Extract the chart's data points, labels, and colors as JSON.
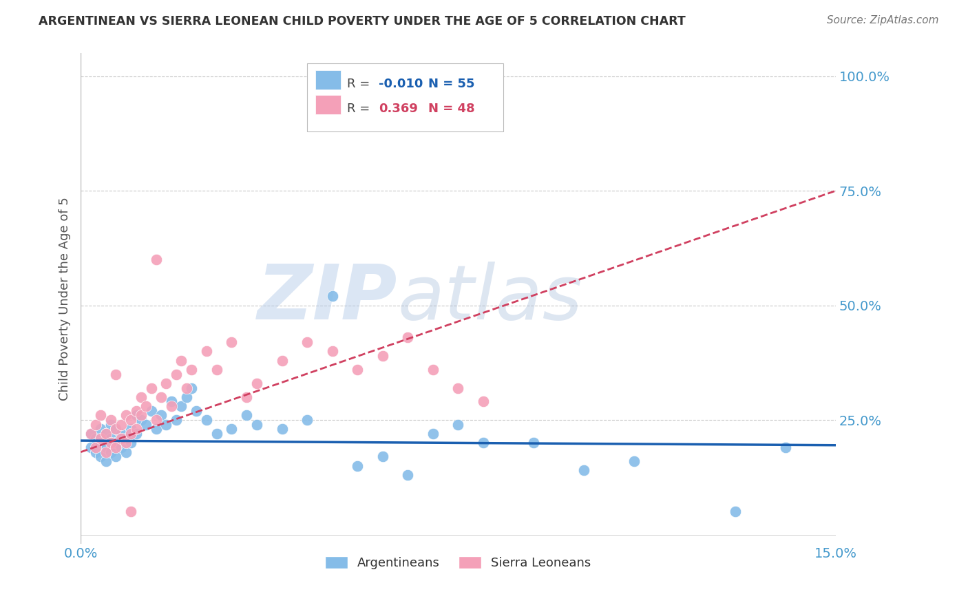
{
  "title": "ARGENTINEAN VS SIERRA LEONEAN CHILD POVERTY UNDER THE AGE OF 5 CORRELATION CHART",
  "source": "Source: ZipAtlas.com",
  "ylabel": "Child Poverty Under the Age of 5",
  "xlim": [
    0.0,
    0.15
  ],
  "ylim": [
    -0.02,
    1.05
  ],
  "xticks": [
    0.0,
    0.05,
    0.1,
    0.15
  ],
  "xtick_labels": [
    "0.0%",
    "",
    "",
    "15.0%"
  ],
  "yticks": [
    0.0,
    0.25,
    0.5,
    0.75,
    1.0
  ],
  "ytick_labels": [
    "",
    "25.0%",
    "50.0%",
    "75.0%",
    "100.0%"
  ],
  "argentineans_color": "#85bce8",
  "sierra_leoneans_color": "#f4a0b8",
  "trend_arg_color": "#1a5fb0",
  "trend_sl_color": "#d04060",
  "r_arg": -0.01,
  "n_arg": 55,
  "r_sl": 0.369,
  "n_sl": 48,
  "background_color": "#ffffff",
  "grid_color": "#c8c8c8",
  "axis_label_color": "#4499cc",
  "title_color": "#333333",
  "watermark_zip": "ZIP",
  "watermark_atlas": "atlas",
  "argentineans_x": [
    0.002,
    0.002,
    0.003,
    0.003,
    0.004,
    0.004,
    0.004,
    0.005,
    0.005,
    0.005,
    0.006,
    0.006,
    0.006,
    0.007,
    0.007,
    0.007,
    0.008,
    0.008,
    0.009,
    0.009,
    0.01,
    0.01,
    0.011,
    0.011,
    0.012,
    0.013,
    0.014,
    0.015,
    0.016,
    0.017,
    0.018,
    0.019,
    0.02,
    0.021,
    0.022,
    0.023,
    0.025,
    0.027,
    0.03,
    0.033,
    0.035,
    0.04,
    0.045,
    0.05,
    0.055,
    0.06,
    0.065,
    0.07,
    0.075,
    0.08,
    0.09,
    0.1,
    0.11,
    0.13,
    0.14
  ],
  "argentineans_y": [
    0.19,
    0.22,
    0.18,
    0.21,
    0.17,
    0.2,
    0.23,
    0.16,
    0.19,
    0.22,
    0.18,
    0.21,
    0.24,
    0.17,
    0.2,
    0.23,
    0.19,
    0.22,
    0.18,
    0.21,
    0.2,
    0.23,
    0.26,
    0.22,
    0.25,
    0.24,
    0.27,
    0.23,
    0.26,
    0.24,
    0.29,
    0.25,
    0.28,
    0.3,
    0.32,
    0.27,
    0.25,
    0.22,
    0.23,
    0.26,
    0.24,
    0.23,
    0.25,
    0.52,
    0.15,
    0.17,
    0.13,
    0.22,
    0.24,
    0.2,
    0.2,
    0.14,
    0.16,
    0.05,
    0.19
  ],
  "sierra_leoneans_x": [
    0.002,
    0.003,
    0.003,
    0.004,
    0.004,
    0.005,
    0.005,
    0.006,
    0.006,
    0.007,
    0.007,
    0.007,
    0.008,
    0.008,
    0.009,
    0.009,
    0.01,
    0.01,
    0.011,
    0.011,
    0.012,
    0.012,
    0.013,
    0.014,
    0.015,
    0.016,
    0.017,
    0.018,
    0.019,
    0.02,
    0.021,
    0.022,
    0.025,
    0.027,
    0.03,
    0.033,
    0.035,
    0.04,
    0.045,
    0.05,
    0.055,
    0.06,
    0.065,
    0.07,
    0.075,
    0.08,
    0.015,
    0.01
  ],
  "sierra_leoneans_y": [
    0.22,
    0.19,
    0.24,
    0.21,
    0.26,
    0.18,
    0.22,
    0.2,
    0.25,
    0.19,
    0.23,
    0.35,
    0.21,
    0.24,
    0.2,
    0.26,
    0.22,
    0.25,
    0.27,
    0.23,
    0.26,
    0.3,
    0.28,
    0.32,
    0.25,
    0.3,
    0.33,
    0.28,
    0.35,
    0.38,
    0.32,
    0.36,
    0.4,
    0.36,
    0.42,
    0.3,
    0.33,
    0.38,
    0.42,
    0.4,
    0.36,
    0.39,
    0.43,
    0.36,
    0.32,
    0.29,
    0.6,
    0.05
  ],
  "trend_arg_y0": 0.205,
  "trend_arg_y1": 0.195,
  "trend_sl_y0": 0.18,
  "trend_sl_y1": 0.75
}
